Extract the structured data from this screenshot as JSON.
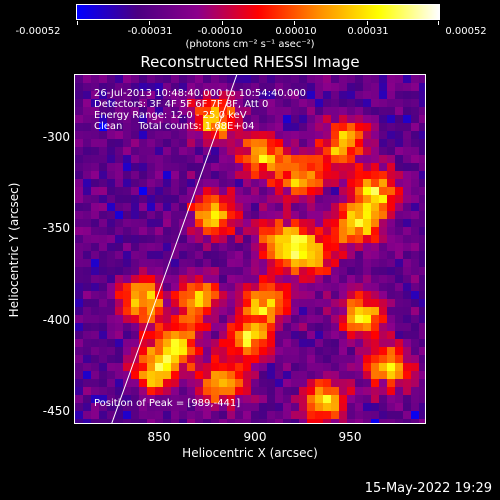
{
  "colorbar": {
    "ticks": [
      "-0.00052",
      "-0.00031",
      "-0.00010",
      "0.00010",
      "0.00031",
      "0.00052"
    ],
    "units": "(photons cm⁻² s⁻¹ asec⁻²)"
  },
  "title": "Reconstructed RHESSI Image",
  "info": {
    "line1": "26-Jul-2013 10:48:40.000 to 10:54:40.000",
    "line2": "Detectors: 3F 4F 5F 6F 7F 8F, Att 0",
    "line3": "Energy Range: 12.0 - 25.0 keV",
    "line4": "Clean     Total counts: 1.68E+04"
  },
  "peak": "Position of Peak = [989,-441]",
  "axes": {
    "xlabel": "Heliocentric X (arcsec)",
    "ylabel": "Heliocentric Y (arcsec)",
    "xticks": [
      "850",
      "900",
      "950"
    ],
    "yticks": [
      "-300",
      "-350",
      "-400",
      "-450"
    ]
  },
  "footer_date": "15-May-2022 19:29",
  "chart_data": {
    "type": "heatmap",
    "title": "Reconstructed RHESSI Image",
    "xlabel": "Heliocentric X (arcsec)",
    "ylabel": "Heliocentric Y (arcsec)",
    "xlim": [
      807,
      992
    ],
    "ylim": [
      -460,
      -277
    ],
    "colorbar_range": [
      -0.00052,
      0.00052
    ],
    "colors": [
      "#0000ff",
      "#4b0082",
      "#8b008b",
      "#ff0000",
      "#ff8c00",
      "#ffff00",
      "#ffffff"
    ],
    "peak_position": [
      989,
      -441
    ]
  }
}
